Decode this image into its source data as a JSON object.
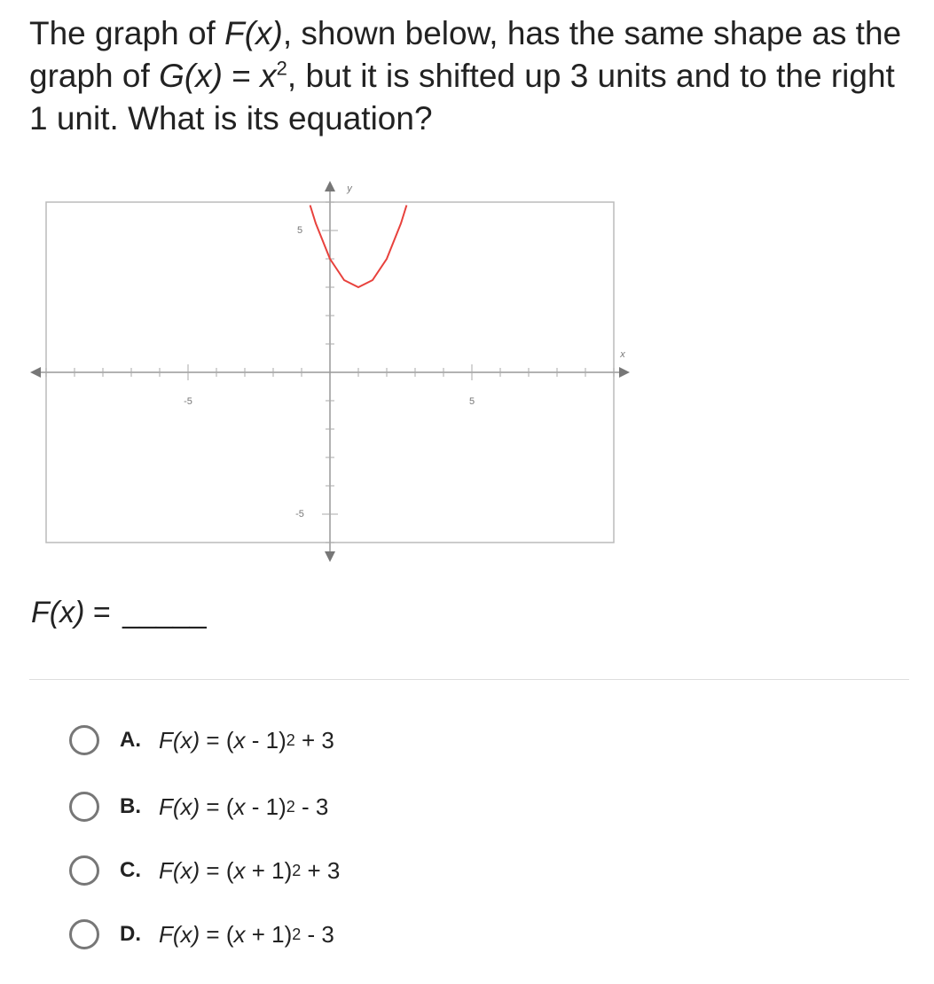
{
  "question": [
    "The graph of ",
    "F(x)",
    ", shown below, has the same shape as the graph of ",
    "G(x)",
    " = ",
    "x",
    "2",
    ", but it is shifted up 3 units and to the right 1 unit. What is its equation?"
  ],
  "graph": {
    "x_label": "x",
    "y_label": "y",
    "xlim": [
      -10,
      10
    ],
    "ylim": [
      -6,
      6
    ],
    "minor_step": 1,
    "xticks": [
      -5,
      5
    ],
    "yticks": [
      -5,
      5
    ],
    "color": "#e8413c",
    "curve": {
      "x": [
        -0.7,
        -0.5,
        0,
        0.5,
        1,
        1.5,
        2,
        2.5,
        2.7
      ],
      "y": [
        5.89,
        5.25,
        4,
        3.25,
        3,
        3.25,
        4,
        5.25,
        5.89
      ]
    }
  },
  "answer": {
    "label": [
      "F(x)",
      " = "
    ],
    "blank": "_____"
  },
  "options": [
    {
      "letter": "A.",
      "equation": [
        "F(x)",
        " = (",
        "x",
        " - 1)",
        "2",
        " + 3"
      ]
    },
    {
      "letter": "B.",
      "equation": [
        "F(x)",
        " = (",
        "x",
        " - 1)",
        "2",
        " - 3"
      ]
    },
    {
      "letter": "C.",
      "equation": [
        "F(x)",
        " = (",
        "x",
        " + 1)",
        "2",
        " + 3"
      ]
    },
    {
      "letter": "D.",
      "equation": [
        "F(x)",
        " = (",
        "x",
        " + 1)",
        "2",
        " - 3"
      ]
    }
  ]
}
